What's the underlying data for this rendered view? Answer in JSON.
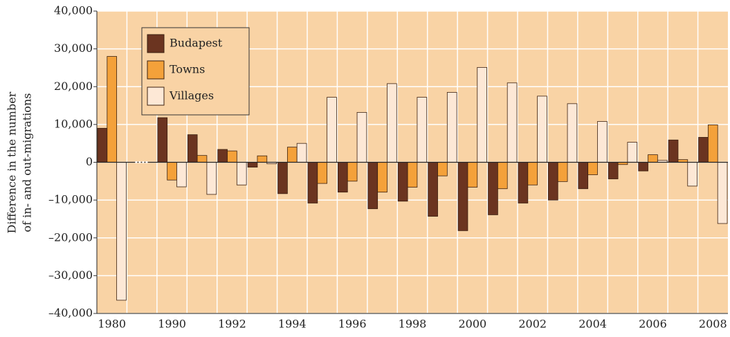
{
  "chart_data": {
    "type": "bar",
    "ylabel": [
      "Difference in the number",
      "of in- and out-migrations"
    ],
    "categories": [
      "1980",
      null,
      "1990",
      null,
      "1992",
      null,
      "1994",
      null,
      "1996",
      null,
      "1998",
      null,
      "2000",
      null,
      "2002",
      null,
      "2004",
      null,
      "2006",
      null,
      "2008"
    ],
    "series": [
      {
        "name": "Budapest",
        "color": "#6b3420",
        "values": [
          9000,
          null,
          11800,
          7300,
          3400,
          -1300,
          -8300,
          -10800,
          -7900,
          -12300,
          -10300,
          -14300,
          -18100,
          -13900,
          -10800,
          -10000,
          -7000,
          -4400,
          -2300,
          5900,
          6600
        ]
      },
      {
        "name": "Towns",
        "color": "#f4a13a",
        "values": [
          28000,
          null,
          -4700,
          1800,
          3000,
          1700,
          4000,
          -5600,
          -5000,
          -7900,
          -6600,
          -3600,
          -6600,
          -7000,
          -6000,
          -5100,
          -3300,
          -600,
          2000,
          700,
          9900
        ]
      },
      {
        "name": "Villages",
        "color": "#fde8d6",
        "values": [
          -36500,
          null,
          -6500,
          -8500,
          -6000,
          -400,
          5000,
          17200,
          13200,
          20800,
          17200,
          18500,
          25100,
          21000,
          17500,
          15500,
          10800,
          5300,
          500,
          -6300,
          -16200
        ]
      }
    ],
    "ylim": [
      -40000,
      40000
    ],
    "yticks": [
      {
        "value": -40000,
        "label": "–40,000"
      },
      {
        "value": -30000,
        "label": "–30,000"
      },
      {
        "value": -20000,
        "label": "–20,000"
      },
      {
        "value": -10000,
        "label": "–10,000"
      },
      0,
      {
        "value": 10000,
        "label": "10,000"
      },
      {
        "value": 20000,
        "label": "20,000"
      },
      {
        "value": 30000,
        "label": "30,000"
      },
      {
        "value": 40000,
        "label": "40,000"
      }
    ],
    "grid": true,
    "legend": "upper left"
  }
}
